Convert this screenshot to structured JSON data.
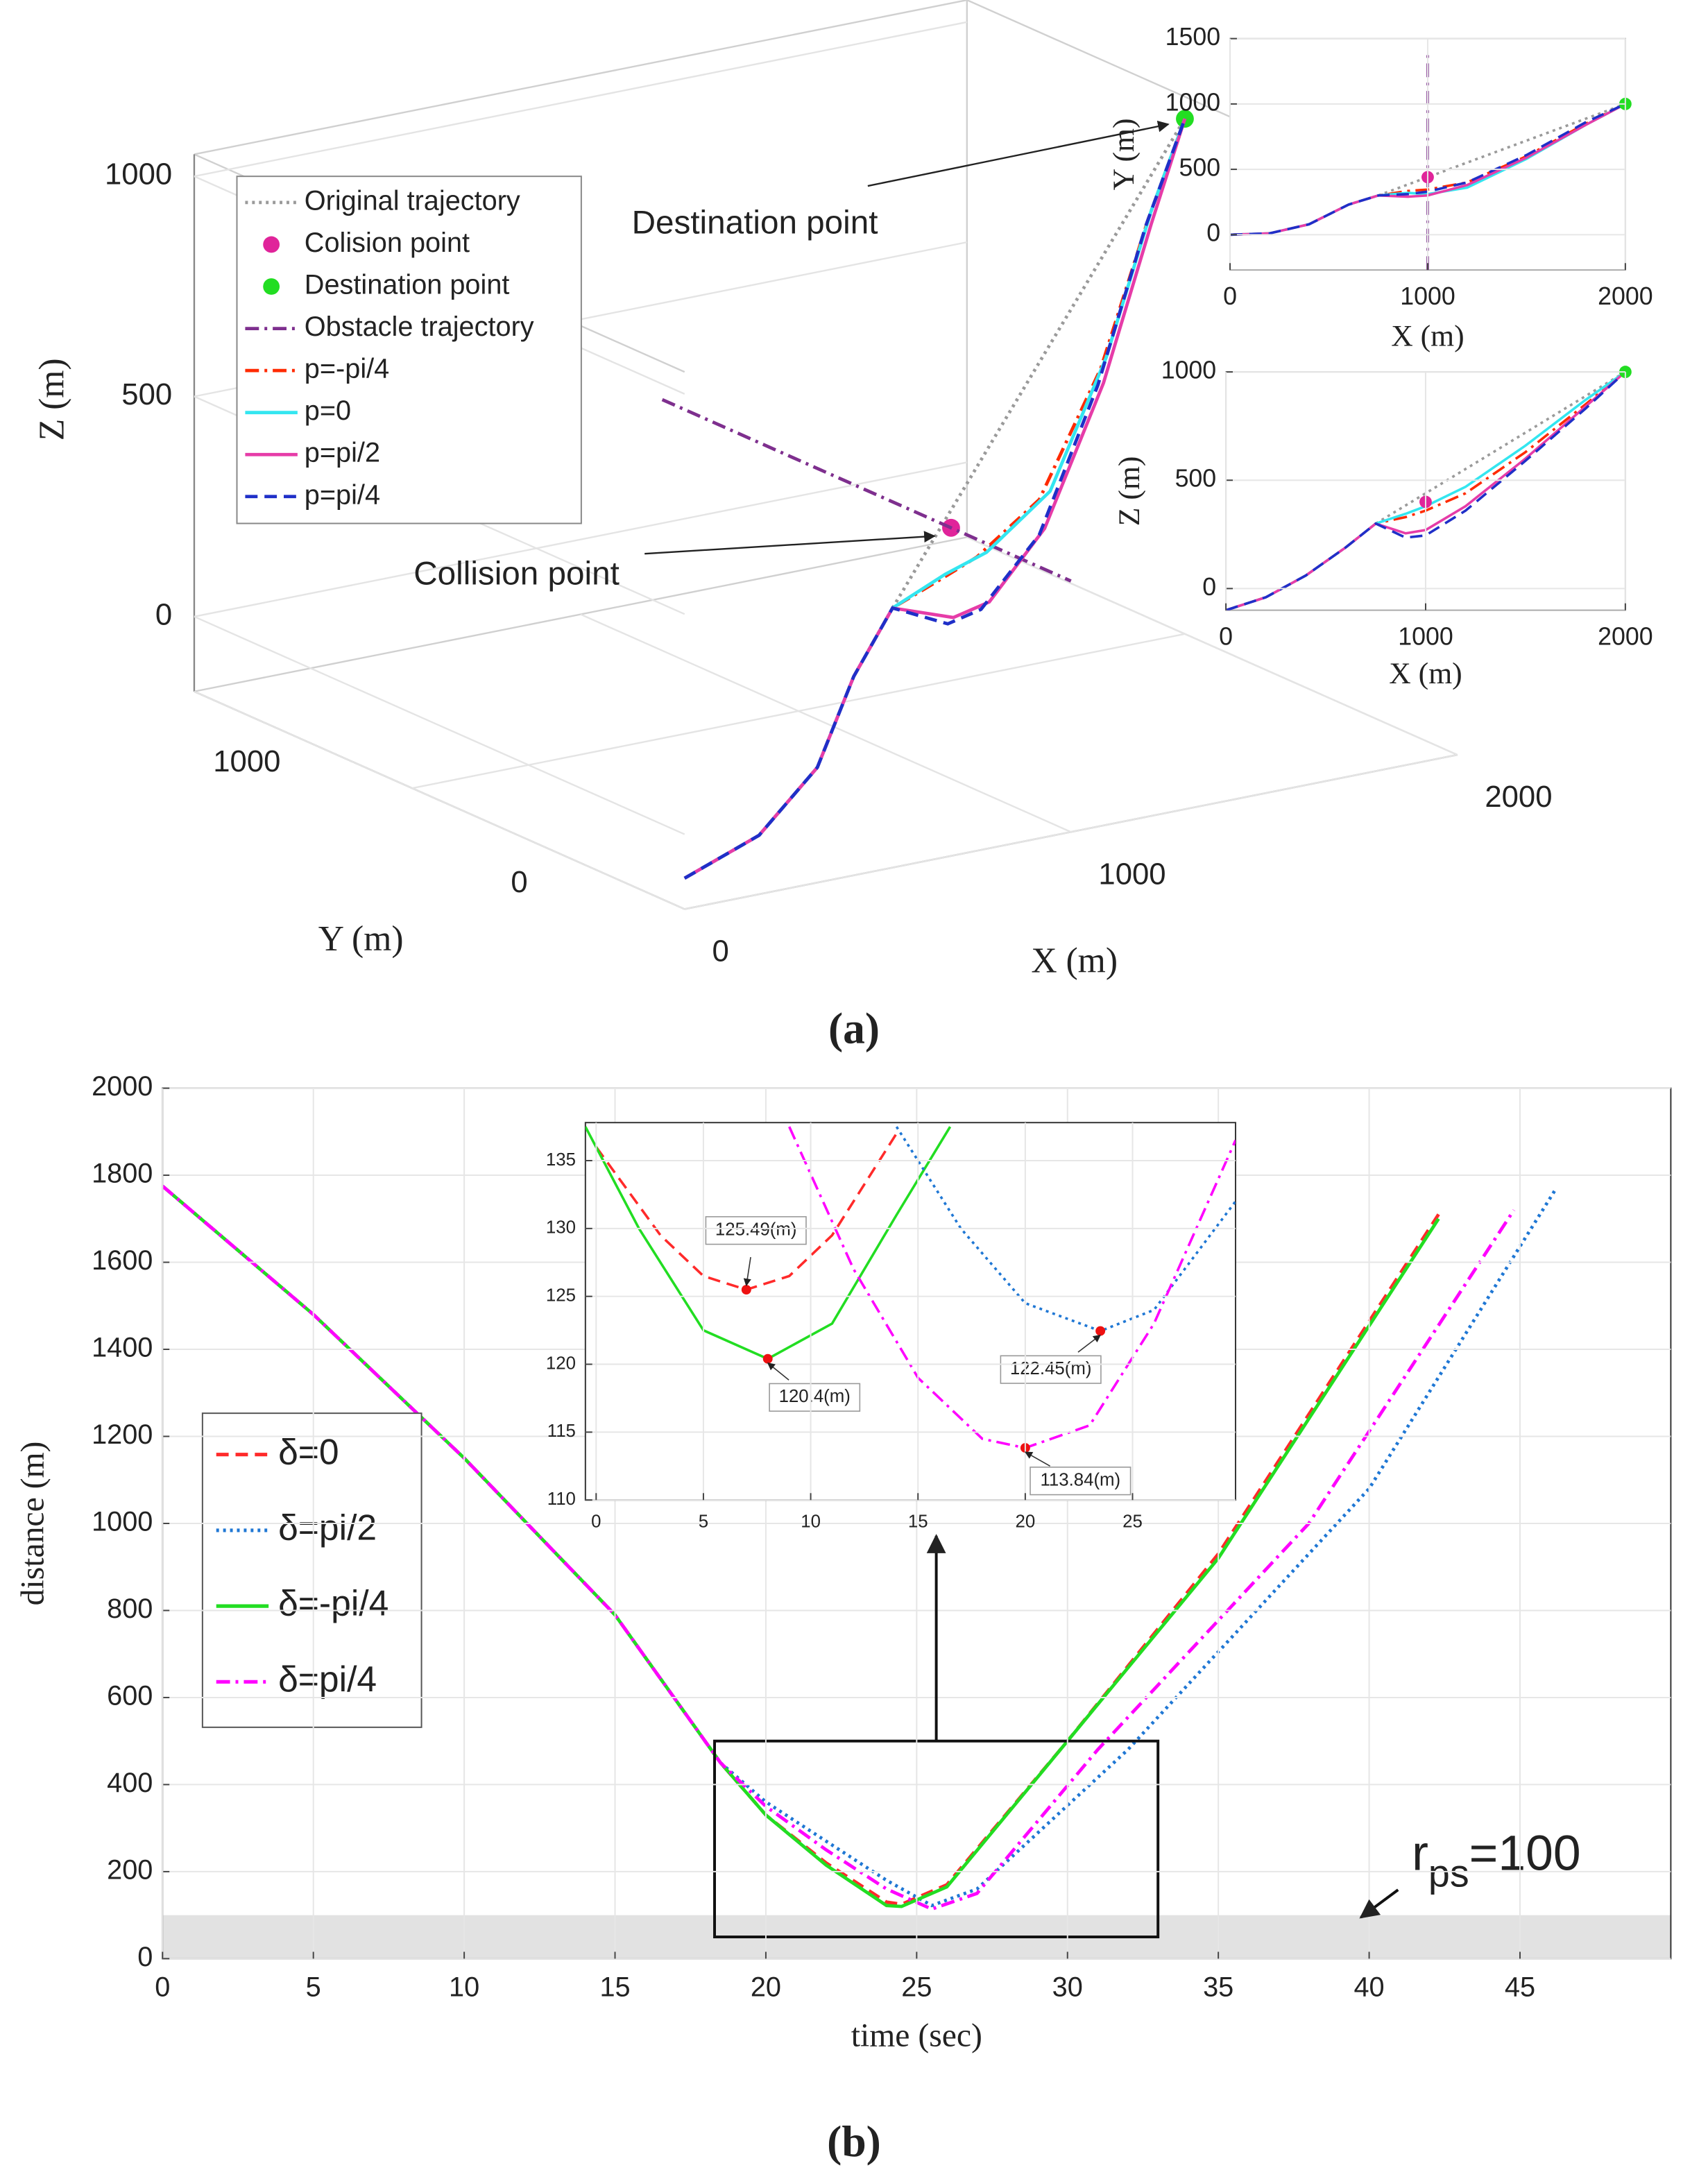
{
  "captions": [
    "(a)",
    "(b)"
  ],
  "chart_data": [
    {
      "type": "line3d",
      "xlabel": "X (m)",
      "ylabel": "Y (m)",
      "zlabel": "Z (m)",
      "xlim": [
        0,
        2000
      ],
      "ylim": [
        0,
        1800
      ],
      "zlim": [
        -170,
        1050
      ],
      "xticks": [
        0,
        1000,
        2000
      ],
      "yticks": [
        0,
        1000
      ],
      "zticks": [
        0,
        500,
        1000
      ],
      "grid": true,
      "legend": "upper left",
      "annotations": [
        "Destination point",
        "Collision point"
      ],
      "series": [
        {
          "name": "Original trajectory",
          "color": "#9a9a9a",
          "dash": "dotted",
          "x": [
            750,
            2000
          ],
          "y": [
            300,
            1000
          ],
          "z": [
            300,
            1000
          ]
        },
        {
          "name": "Colision point",
          "color": "#e0249a",
          "marker": true,
          "x": [
            1000
          ],
          "y": [
            440
          ],
          "z": [
            400
          ]
        },
        {
          "name": "Destination point",
          "color": "#22dd22",
          "marker": true,
          "x": [
            2000
          ],
          "y": [
            1000
          ],
          "z": [
            1000
          ]
        },
        {
          "name": "Obstacle trajectory",
          "color": "#7e2f8e",
          "dash": "dashdot",
          "x": [
            1000,
            1000
          ],
          "y": [
            1500,
            0
          ],
          "z": [
            400,
            400
          ]
        },
        {
          "name": "p=-pi/4",
          "color": "#ff2a00",
          "dash": "dashdot",
          "x": [
            0,
            200,
            400,
            600,
            750,
            900,
            1000,
            1200,
            1500,
            1800,
            2000
          ],
          "y": [
            0,
            10,
            80,
            230,
            300,
            335,
            345,
            400,
            600,
            850,
            1000
          ],
          "z": [
            -100,
            -40,
            60,
            190,
            300,
            330,
            360,
            440,
            630,
            850,
            1000
          ]
        },
        {
          "name": "p=0",
          "color": "#33e6f0",
          "dash": "solid",
          "x": [
            0,
            200,
            400,
            600,
            750,
            900,
            1000,
            1200,
            1500,
            1800,
            2000
          ],
          "y": [
            0,
            10,
            80,
            230,
            300,
            320,
            310,
            360,
            580,
            840,
            1000
          ],
          "z": [
            -100,
            -40,
            60,
            190,
            300,
            345,
            380,
            470,
            660,
            870,
            1000
          ]
        },
        {
          "name": "p=pi/2",
          "color": "#e63ca8",
          "dash": "solid",
          "x": [
            0,
            200,
            400,
            600,
            750,
            900,
            1000,
            1200,
            1500,
            1800,
            2000
          ],
          "y": [
            0,
            10,
            80,
            230,
            300,
            290,
            300,
            380,
            590,
            840,
            1000
          ],
          "z": [
            -100,
            -40,
            60,
            190,
            300,
            255,
            270,
            380,
            600,
            840,
            1000
          ]
        },
        {
          "name": "p=pi/4",
          "color": "#1f2fc8",
          "dash": "dashed",
          "x": [
            0,
            200,
            400,
            600,
            750,
            900,
            1000,
            1200,
            1500,
            1800,
            2000
          ],
          "y": [
            0,
            10,
            80,
            230,
            300,
            310,
            330,
            400,
            610,
            860,
            1000
          ],
          "z": [
            -100,
            -40,
            60,
            190,
            300,
            235,
            245,
            360,
            590,
            830,
            1000
          ]
        }
      ]
    },
    {
      "type": "line",
      "xlabel": "X (m)",
      "ylabel": "Y (m)",
      "xlim": [
        0,
        2000
      ],
      "ylim": [
        -270,
        1500
      ],
      "xticks": [
        0,
        1000,
        2000
      ],
      "yticks": [
        0,
        500,
        1000,
        1500
      ],
      "grid": true,
      "series": [
        {
          "color": "#9a9a9a",
          "dash": "dotted",
          "x": [
            750,
            2000
          ],
          "values": [
            300,
            1000
          ]
        },
        {
          "color": "#7e2f8e",
          "dash": "dashdot",
          "x": [
            1000,
            1000
          ],
          "values": [
            -270,
            1400
          ]
        },
        {
          "color": "#ff2a00",
          "dash": "dashdot",
          "x": [
            0,
            200,
            400,
            600,
            750,
            900,
            1000,
            1200,
            1500,
            1800,
            2000
          ],
          "values": [
            0,
            10,
            80,
            230,
            300,
            335,
            345,
            400,
            600,
            850,
            1000
          ]
        },
        {
          "color": "#33e6f0",
          "dash": "solid",
          "x": [
            0,
            200,
            400,
            600,
            750,
            900,
            1000,
            1200,
            1500,
            1800,
            2000
          ],
          "values": [
            0,
            10,
            80,
            230,
            300,
            320,
            310,
            360,
            580,
            840,
            1000
          ]
        },
        {
          "color": "#e63ca8",
          "dash": "solid",
          "x": [
            0,
            200,
            400,
            600,
            750,
            900,
            1000,
            1200,
            1500,
            1800,
            2000
          ],
          "values": [
            0,
            10,
            80,
            230,
            300,
            290,
            300,
            380,
            590,
            840,
            1000
          ]
        },
        {
          "color": "#1f2fc8",
          "dash": "dashed",
          "x": [
            0,
            200,
            400,
            600,
            750,
            900,
            1000,
            1200,
            1500,
            1800,
            2000
          ],
          "values": [
            0,
            10,
            80,
            230,
            300,
            310,
            330,
            400,
            610,
            860,
            1000
          ]
        },
        {
          "color": "#e0249a",
          "marker": true,
          "x": [
            1000
          ],
          "values": [
            440
          ]
        },
        {
          "color": "#22dd22",
          "marker": true,
          "x": [
            2000
          ],
          "values": [
            1000
          ]
        }
      ]
    },
    {
      "type": "line",
      "xlabel": "X (m)",
      "ylabel": "Z (m)",
      "xlim": [
        0,
        2000
      ],
      "ylim": [
        -100,
        1000
      ],
      "xticks": [
        0,
        1000,
        2000
      ],
      "yticks": [
        0,
        500,
        1000
      ],
      "grid": true,
      "series": [
        {
          "color": "#9a9a9a",
          "dash": "dotted",
          "x": [
            750,
            2000
          ],
          "values": [
            300,
            1000
          ]
        },
        {
          "color": "#ff2a00",
          "dash": "dashdot",
          "x": [
            0,
            200,
            400,
            600,
            750,
            900,
            1000,
            1200,
            1500,
            1800,
            2000
          ],
          "values": [
            -100,
            -40,
            60,
            190,
            300,
            330,
            360,
            440,
            630,
            850,
            1000
          ]
        },
        {
          "color": "#33e6f0",
          "dash": "solid",
          "x": [
            0,
            200,
            400,
            600,
            750,
            900,
            1000,
            1200,
            1500,
            1800,
            2000
          ],
          "values": [
            -100,
            -40,
            60,
            190,
            300,
            345,
            380,
            470,
            660,
            870,
            1000
          ]
        },
        {
          "color": "#e63ca8",
          "dash": "solid",
          "x": [
            0,
            200,
            400,
            600,
            750,
            900,
            1000,
            1200,
            1500,
            1800,
            2000
          ],
          "values": [
            -100,
            -40,
            60,
            190,
            300,
            255,
            270,
            380,
            600,
            840,
            1000
          ]
        },
        {
          "color": "#1f2fc8",
          "dash": "dashed",
          "x": [
            0,
            200,
            400,
            600,
            750,
            900,
            1000,
            1200,
            1500,
            1800,
            2000
          ],
          "values": [
            -100,
            -40,
            60,
            190,
            300,
            235,
            245,
            360,
            590,
            830,
            1000
          ]
        },
        {
          "color": "#e0249a",
          "marker": true,
          "x": [
            1000
          ],
          "values": [
            400
          ]
        },
        {
          "color": "#22dd22",
          "marker": true,
          "x": [
            2000
          ],
          "values": [
            1000
          ]
        }
      ]
    },
    {
      "type": "line",
      "xlabel": "time (sec)",
      "ylabel": "distance (m)",
      "xlim": [
        0,
        50
      ],
      "ylim": [
        0,
        2000
      ],
      "xticks": [
        0,
        5,
        10,
        15,
        20,
        25,
        30,
        35,
        40,
        45
      ],
      "yticks": [
        0,
        200,
        400,
        600,
        800,
        1000,
        1200,
        1400,
        1600,
        1800,
        2000
      ],
      "grid": true,
      "legend": "center left",
      "band": [
        0,
        100
      ],
      "band_label": {
        "prefix": "r",
        "subscript": "ps",
        "suffix": "=100"
      },
      "zoom_box": {
        "x": [
          18.3,
          33
        ],
        "y": [
          50,
          500
        ]
      },
      "series": [
        {
          "name": "δ=0",
          "color": "#ff2a2a",
          "dash": "dashed",
          "x": [
            0,
            5,
            10,
            15,
            18.5,
            20,
            22,
            24,
            24.5,
            26,
            30,
            35,
            42.3
          ],
          "values": [
            1775,
            1480,
            1150,
            790,
            450,
            330,
            220,
            130,
            125,
            170,
            500,
            930,
            1710
          ]
        },
        {
          "name": "δ=pi/2",
          "color": "#1f77d4",
          "dash": "dotted",
          "x": [
            0,
            5,
            10,
            15,
            18.5,
            20,
            22,
            24,
            25.5,
            27,
            32,
            40,
            46.2
          ],
          "values": [
            1775,
            1480,
            1150,
            790,
            450,
            360,
            270,
            180,
            122,
            160,
            480,
            1080,
            1770
          ]
        },
        {
          "name": "δ=-pi/4",
          "color": "#22dd22",
          "dash": "solid",
          "x": [
            0,
            5,
            10,
            15,
            18.5,
            20,
            22,
            24,
            24.5,
            26,
            30,
            35,
            42.3
          ],
          "values": [
            1775,
            1480,
            1150,
            790,
            450,
            330,
            215,
            122,
            120,
            165,
            500,
            920,
            1700
          ]
        },
        {
          "name": "δ=pi/4",
          "color": "#ff00ff",
          "dash": "dashdot",
          "x": [
            0,
            5,
            10,
            15,
            18.5,
            20,
            22,
            24,
            25.5,
            27,
            31,
            38,
            44.8
          ],
          "values": [
            1775,
            1480,
            1150,
            790,
            450,
            350,
            250,
            160,
            114,
            150,
            480,
            1000,
            1720
          ]
        }
      ]
    },
    {
      "type": "line",
      "xlim": [
        -0.5,
        29.8
      ],
      "ylim": [
        110,
        137.8
      ],
      "xticks": [
        0,
        5,
        10,
        15,
        20,
        25
      ],
      "yticks": [
        110,
        115,
        120,
        125,
        130,
        135
      ],
      "grid": true,
      "series": [
        {
          "color": "#ff2a2a",
          "dash": "dashed",
          "x": [
            0,
            3,
            5,
            7,
            9,
            11,
            14
          ],
          "values": [
            136,
            129.5,
            126.5,
            125.49,
            126.5,
            129.5,
            137
          ]
        },
        {
          "color": "#22dd22",
          "dash": "solid",
          "x": [
            -0.5,
            2,
            5,
            8,
            11,
            14,
            16.5
          ],
          "values": [
            137.5,
            130,
            122.5,
            120.4,
            123,
            131,
            137.5
          ]
        },
        {
          "color": "#1f77d4",
          "dash": "dotted",
          "x": [
            14,
            17,
            20,
            23.5,
            26,
            29.8
          ],
          "values": [
            137.5,
            130,
            124.5,
            122.45,
            124,
            132
          ]
        },
        {
          "color": "#ff00ff",
          "dash": "dashdot",
          "x": [
            9,
            12,
            15,
            18,
            20,
            23,
            26,
            29.8
          ],
          "values": [
            137.5,
            127,
            119,
            114.5,
            113.84,
            115.5,
            123,
            136.5
          ]
        }
      ],
      "minima": {
        "color": "#ee1111",
        "x": [
          7,
          8,
          20,
          23.5
        ],
        "values": [
          125.49,
          120.4,
          113.84,
          122.45
        ],
        "value_labels": [
          "125.49(m)",
          "120.4(m)",
          "113.84(m)",
          "122.45(m)"
        ]
      }
    }
  ]
}
